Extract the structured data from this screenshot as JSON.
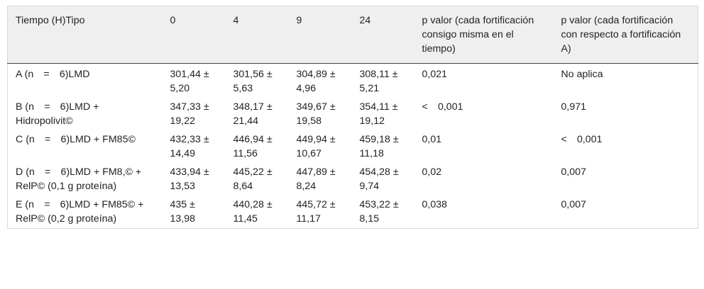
{
  "table": {
    "headers": [
      "Tiempo (H)Tipo",
      "0",
      "4",
      "9",
      "24",
      "p valor (cada fortificación consigo misma en el tiempo)",
      "p valor (cada fortificación con respecto a fortificación A)"
    ],
    "rows": [
      [
        "A (n = 6)LMD",
        "301,44 ± 5,20",
        "301,56 ± 5,63",
        "304,89 ± 4,96",
        "308,11 ± 5,21",
        "0,021",
        "No aplica"
      ],
      [
        "B (n = 6)LMD + Hidropolivit©",
        "347,33 ± 19,22",
        "348,17 ± 21,44",
        "349,67 ± 19,58",
        "354,11 ± 19,12",
        "< 0,001",
        "0,971"
      ],
      [
        "C (n = 6)LMD + FM85©",
        "432,33 ± 14,49",
        "446,94 ± 11,56",
        "449,94 ± 10,67",
        "459,18 ± 11,18",
        "0,01",
        "< 0,001"
      ],
      [
        "D (n = 6)LMD + FM8,© + RelP© (0,1 g proteína)",
        "433,94 ± 13,53",
        "445,22 ± 8,64",
        "447,89 ± 8,24",
        "454,28 ± 9,74",
        "0,02",
        "0,007"
      ],
      [
        "E (n = 6)LMD + FM85© + RelP© (0,2 g proteína)",
        "435 ± 13,98",
        "440,28 ± 11,45",
        "445,72 ± 11,17",
        "453,22 ± 8,15",
        "0,038",
        "0,007"
      ]
    ]
  }
}
